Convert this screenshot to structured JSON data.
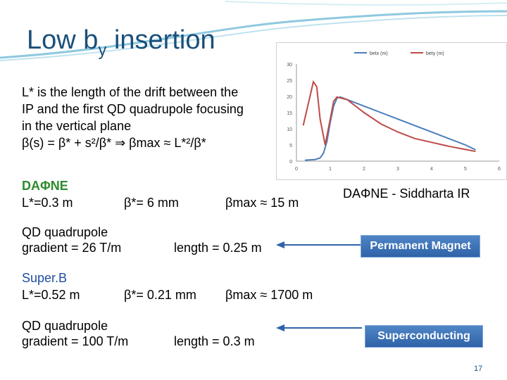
{
  "title": {
    "main": "Low b",
    "sub": "y",
    "rest": " insertion"
  },
  "intro": {
    "line1": "L* is the length of the drift between the",
    "line2": "IP and the first QD quadrupole focusing",
    "line3": "in the vertical plane",
    "formula": "β(s) = β* + s²/β*  ⇒  βmax ≈  L*²/β*"
  },
  "dafne": {
    "heading": "DAΦNE",
    "lstar": "L*=0.3 m",
    "betastar": "β*= 6 mm",
    "betamax": "βmax ≈ 15 m",
    "qd_line1": "QD quadrupole",
    "qd_line2": "gradient = 26 T/m",
    "length": "length = 0.25 m"
  },
  "superb": {
    "heading": "Super.B",
    "lstar": "L*=0.52 m",
    "betastar": "β*= 0.21 mm",
    "betamax": "βmax ≈ 1700 m",
    "qd_line1": "QD quadrupole",
    "qd_line2": "gradient = 100 T/m",
    "length": "length = 0.3 m"
  },
  "chart_caption": "DAΦNE - Siddharta IR",
  "buttons": {
    "permanent": "Permanent Magnet",
    "superconducting": "Superconducting"
  },
  "page_number": "17",
  "colors": {
    "title": "#1a4f7a",
    "green": "#2e8b2e",
    "blue_text": "#1f4fa0",
    "betx": "#4a7ebb",
    "bety": "#be4b48"
  },
  "chart_data": {
    "type": "line",
    "title": "",
    "xlabel": "",
    "ylabel": "",
    "xlim": [
      0,
      6
    ],
    "ylim": [
      0,
      30
    ],
    "xticks": [
      "0",
      "1",
      "2",
      "3",
      "4",
      "5",
      "6"
    ],
    "yticks": [
      "0",
      "5",
      "10",
      "15",
      "20",
      "25",
      "30"
    ],
    "legend_position": "top",
    "series": [
      {
        "name": "betx (m)",
        "color": "#4a7ebb",
        "points": [
          [
            0.25,
            0.3
          ],
          [
            0.55,
            0.5
          ],
          [
            0.7,
            1.0
          ],
          [
            0.8,
            2.5
          ],
          [
            0.9,
            6
          ],
          [
            1.0,
            12
          ],
          [
            1.1,
            17
          ],
          [
            1.2,
            19.5
          ],
          [
            1.3,
            19.8
          ],
          [
            1.5,
            19.0
          ],
          [
            2.0,
            17.0
          ],
          [
            2.5,
            15.0
          ],
          [
            3.0,
            13.0
          ],
          [
            3.5,
            11.0
          ],
          [
            4.0,
            9.0
          ],
          [
            4.5,
            7.0
          ],
          [
            5.0,
            5.0
          ],
          [
            5.3,
            3.5
          ]
        ]
      },
      {
        "name": "bety (m)",
        "color": "#be4b48",
        "points": [
          [
            0.2,
            11.0
          ],
          [
            0.5,
            24.5
          ],
          [
            0.6,
            23.0
          ],
          [
            0.7,
            13.0
          ],
          [
            0.85,
            5.0
          ],
          [
            1.0,
            13.0
          ],
          [
            1.1,
            18.5
          ],
          [
            1.2,
            19.8
          ],
          [
            1.5,
            19.0
          ],
          [
            2.0,
            15.0
          ],
          [
            2.5,
            11.5
          ],
          [
            3.0,
            9.0
          ],
          [
            3.5,
            7.0
          ],
          [
            4.0,
            5.8
          ],
          [
            4.5,
            4.6
          ],
          [
            5.0,
            3.6
          ],
          [
            5.3,
            3.0
          ]
        ]
      }
    ]
  }
}
